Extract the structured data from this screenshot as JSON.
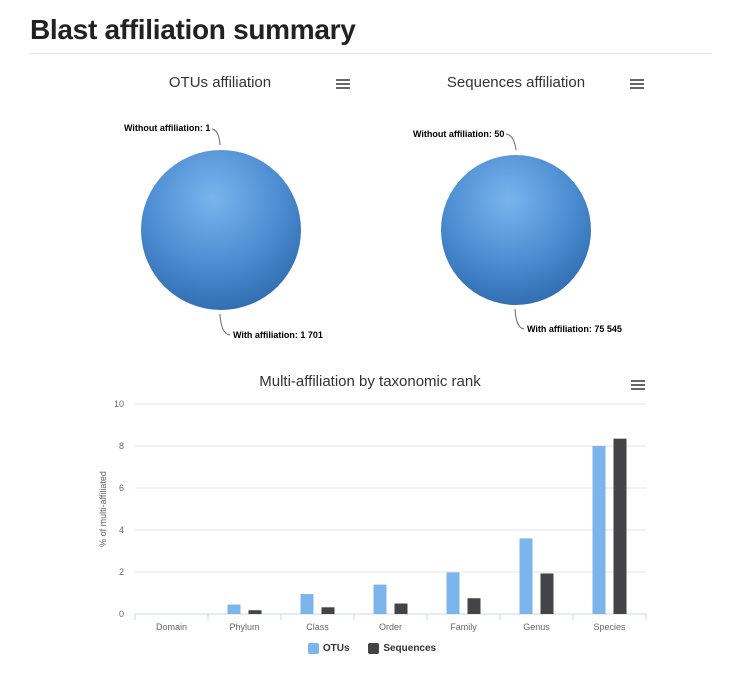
{
  "page": {
    "title": "Blast affiliation summary"
  },
  "pie_otus": {
    "title": "OTUs affiliation",
    "menu_icon": "hamburger-menu-icon",
    "label_without": "Without affiliation: 1",
    "label_with": "With affiliation: 1 701"
  },
  "pie_sequences": {
    "title": "Sequences affiliation",
    "menu_icon": "hamburger-menu-icon",
    "label_without": "Without affiliation: 50",
    "label_with": "With affiliation: 75 545"
  },
  "bar_chart": {
    "title": "Multi-affiliation by taxonomic rank",
    "menu_icon": "hamburger-menu-icon",
    "legend": [
      "OTUs",
      "Sequences"
    ]
  },
  "colors": {
    "pie_fill": "#4a8bd0",
    "otus": "#7cb5ec",
    "sequences": "#434348",
    "grid": "#e6e6e6",
    "axis": "#ccd6eb"
  },
  "chart_data": [
    {
      "type": "pie",
      "title": "OTUs affiliation",
      "slices": [
        {
          "label": "Without affiliation",
          "value": 1
        },
        {
          "label": "With affiliation",
          "value": 1701
        }
      ]
    },
    {
      "type": "pie",
      "title": "Sequences affiliation",
      "slices": [
        {
          "label": "Without affiliation",
          "value": 50
        },
        {
          "label": "With affiliation",
          "value": 75545
        }
      ]
    },
    {
      "type": "bar",
      "title": "Multi-affiliation by taxonomic rank",
      "xlabel": "",
      "ylabel": "% of multi-affiliated",
      "ylim": [
        0,
        10
      ],
      "yticks": [
        "0",
        "2",
        "4",
        "6",
        "8",
        "10"
      ],
      "categories": [
        "Domain",
        "Phylum",
        "Class",
        "Order",
        "Family",
        "Genus",
        "Species"
      ],
      "series": [
        {
          "name": "OTUs",
          "values": [
            0,
            0.45,
            0.95,
            1.4,
            1.98,
            3.6,
            8.0
          ]
        },
        {
          "name": "Sequences",
          "values": [
            0,
            0.18,
            0.32,
            0.5,
            0.75,
            1.93,
            8.35
          ]
        }
      ],
      "grid": true,
      "legend_position": "bottom-center"
    }
  ]
}
